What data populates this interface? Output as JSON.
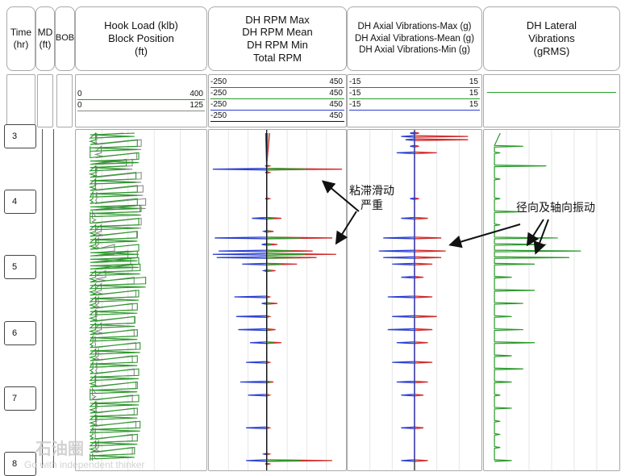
{
  "headers": {
    "time": [
      "Time",
      "(hr)"
    ],
    "md": [
      "MD",
      "(ft)"
    ],
    "bob": "BOB",
    "hook": [
      "Hook Load (klb)",
      "Block Position",
      "(ft)"
    ],
    "rpm": [
      "DH RPM Max",
      "DH RPM Mean",
      "DH RPM Min",
      "Total RPM"
    ],
    "axial": [
      "DH Axial Vibrations-Max (g)",
      "DH Axial Vibrations-Mean (g)",
      "DH Axial Vibrations-Min (g)"
    ],
    "lateral": [
      "DH Lateral",
      "Vibrations",
      "(gRMS)"
    ]
  },
  "scales": {
    "hook": [
      {
        "min": "0",
        "max": "400",
        "color": "#2a9a2a"
      },
      {
        "min": "0",
        "max": "125",
        "color": "#888888"
      }
    ],
    "rpm": [
      {
        "min": "-250",
        "max": "450",
        "color": "#d12b2b"
      },
      {
        "min": "-250",
        "max": "450",
        "color": "#2a9a2a"
      },
      {
        "min": "-250",
        "max": "450",
        "color": "#2b3fd1"
      },
      {
        "min": "-250",
        "max": "450",
        "color": "#111111"
      }
    ],
    "axial": [
      {
        "min": "-15",
        "max": "15",
        "color": "#d12b2b"
      },
      {
        "min": "-15",
        "max": "15",
        "color": "#2a9a2a"
      },
      {
        "min": "-15",
        "max": "15",
        "color": "#2b3fd1"
      }
    ],
    "lateral": [
      {
        "color": "#2a9a2a"
      }
    ]
  },
  "time_ticks": [
    "3",
    "4",
    "5",
    "6",
    "7",
    "8"
  ],
  "annotations": {
    "stick_slip": [
      "粘滞滑动",
      "严重"
    ],
    "vibration": "径向及轴向振动"
  },
  "watermark": {
    "cn": "石油圈",
    "en": "Go with independent thinker"
  },
  "colors": {
    "red": "#d12b2b",
    "green": "#2a9a2a",
    "blue": "#2b3fd1",
    "black": "#111111",
    "gray": "#8a8a8a"
  },
  "chart_data": [
    {
      "type": "line",
      "track": "hook",
      "x_unit": "hr",
      "xlim": [
        2.95,
        8.1
      ],
      "series": [
        {
          "name": "Hook Load (klb)",
          "x": [
            3.0,
            3.1,
            3.2,
            3.3,
            3.4,
            3.5,
            3.6,
            3.7,
            3.8,
            3.9,
            4.0,
            4.1,
            4.2,
            4.3,
            4.4,
            4.5,
            4.6,
            4.7,
            4.8,
            4.9,
            5.0,
            5.1,
            5.2,
            5.3,
            5.4,
            5.5,
            5.6,
            5.7,
            5.8,
            5.9,
            6.0,
            6.1,
            6.2,
            6.3,
            6.4,
            6.5,
            6.6,
            6.7,
            6.8,
            6.9,
            7.0,
            7.1,
            7.2,
            7.3,
            7.4,
            7.5,
            7.6,
            7.7,
            7.8,
            7.9,
            8.0
          ],
          "values": [
            200,
            60,
            210,
            40,
            215,
            170,
            60,
            205,
            60,
            210,
            50,
            210,
            220,
            40,
            215,
            60,
            210,
            60,
            215,
            210,
            215,
            220,
            60,
            240,
            60,
            215,
            60,
            210,
            60,
            200,
            60,
            210,
            50,
            220,
            60,
            210,
            50,
            215,
            60,
            210,
            40,
            215,
            60,
            210,
            60,
            220,
            50,
            210,
            60,
            200,
            40
          ]
        },
        {
          "name": "Block Position (ft)",
          "x": [
            3.0,
            3.1,
            3.2,
            3.3,
            3.4,
            3.5,
            3.6,
            3.7,
            3.8,
            3.9,
            4.0,
            4.1,
            4.2,
            4.3,
            4.4,
            4.5,
            4.6,
            4.7,
            4.8,
            4.9,
            5.0,
            5.1,
            5.2,
            5.3,
            5.4,
            5.5,
            5.6,
            5.7,
            5.8,
            5.9,
            6.0,
            6.1,
            6.2,
            6.3,
            6.4,
            6.5,
            6.6,
            6.7,
            6.8,
            6.9,
            7.0,
            7.1,
            7.2,
            7.3,
            7.4,
            7.5,
            7.6,
            7.7,
            7.8,
            7.9,
            8.0
          ],
          "values": [
            50,
            20,
            70,
            25,
            65,
            60,
            20,
            70,
            18,
            72,
            20,
            75,
            70,
            15,
            70,
            25,
            65,
            22,
            40,
            55,
            58,
            60,
            30,
            62,
            25,
            64,
            22,
            60,
            20,
            63,
            25,
            62,
            18,
            64,
            22,
            60,
            20,
            62,
            18,
            64,
            15,
            60,
            20,
            62,
            20,
            64,
            18,
            60,
            22,
            60,
            15
          ]
        }
      ]
    },
    {
      "type": "line",
      "track": "rpm",
      "x_unit": "hr",
      "xlim": [
        2.95,
        8.1
      ],
      "ylim": [
        -250,
        450
      ],
      "series": [
        {
          "name": "DH RPM Max",
          "x": [
            3.0,
            3.5,
            3.55,
            3.6,
            4.0,
            4.3,
            4.5,
            4.6,
            4.7,
            4.8,
            4.85,
            4.9,
            5.0,
            5.1,
            5.5,
            5.6,
            5.8,
            6.0,
            6.2,
            6.5,
            6.8,
            7.0,
            7.5,
            7.9,
            8.0,
            8.05
          ],
          "values": [
            60,
            60,
            430,
            60,
            60,
            120,
            80,
            380,
            100,
            280,
            400,
            300,
            200,
            90,
            60,
            100,
            60,
            90,
            120,
            60,
            80,
            60,
            60,
            60,
            380,
            60
          ]
        },
        {
          "name": "DH RPM Mean",
          "x": [
            3.0,
            3.5,
            3.55,
            3.6,
            4.0,
            4.3,
            4.5,
            4.6,
            4.7,
            4.8,
            4.85,
            4.9,
            5.0,
            5.1,
            5.5,
            5.6,
            5.8,
            6.0,
            6.2,
            6.5,
            6.8,
            7.0,
            7.5,
            7.9,
            8.0,
            8.05
          ],
          "values": [
            50,
            50,
            250,
            50,
            50,
            80,
            60,
            220,
            70,
            180,
            240,
            200,
            120,
            60,
            50,
            70,
            50,
            60,
            80,
            50,
            60,
            50,
            50,
            50,
            220,
            50
          ]
        },
        {
          "name": "DH RPM Min",
          "x": [
            3.0,
            3.5,
            3.55,
            3.6,
            4.0,
            4.3,
            4.5,
            4.6,
            4.7,
            4.8,
            4.85,
            4.9,
            5.0,
            5.1,
            5.5,
            5.6,
            5.8,
            6.0,
            6.2,
            6.5,
            6.8,
            7.0,
            7.5,
            7.9,
            8.0,
            8.05
          ],
          "values": [
            40,
            40,
            -230,
            40,
            40,
            -30,
            30,
            -220,
            20,
            -200,
            -230,
            -210,
            -80,
            30,
            -120,
            20,
            -110,
            -100,
            -40,
            -60,
            -90,
            -50,
            -60,
            30,
            -60,
            40
          ]
        },
        {
          "name": "Total RPM",
          "x": [
            3.0,
            4.0,
            5.0,
            6.0,
            7.0,
            8.0
          ],
          "values": [
            45,
            45,
            45,
            45,
            45,
            45
          ]
        }
      ]
    },
    {
      "type": "line",
      "track": "axial",
      "x_unit": "hr",
      "xlim": [
        2.95,
        8.1
      ],
      "ylim": [
        -15,
        15
      ],
      "series": [
        {
          "name": "DH Axial Vibrations-Max (g)",
          "x": [
            3.0,
            3.05,
            3.1,
            3.2,
            3.3,
            4.0,
            4.3,
            4.6,
            4.8,
            4.9,
            5.0,
            5.2,
            5.5,
            5.8,
            6.0,
            6.2,
            6.5,
            6.8,
            7.0,
            7.5,
            8.0
          ],
          "values": [
            1,
            12,
            12,
            1,
            5,
            1,
            3,
            6,
            7,
            6,
            4,
            2,
            4,
            5,
            4,
            3,
            4,
            3,
            2,
            2,
            3
          ]
        },
        {
          "name": "DH Axial Vibrations-Mean (g)",
          "x": [
            3.0,
            4.0,
            5.0,
            6.0,
            7.0,
            8.0
          ],
          "values": [
            0,
            0,
            0,
            0,
            0,
            0
          ]
        },
        {
          "name": "DH Axial Vibrations-Min (g)",
          "x": [
            3.0,
            3.05,
            3.1,
            3.2,
            3.3,
            4.0,
            4.3,
            4.6,
            4.8,
            4.9,
            5.0,
            5.2,
            5.5,
            5.8,
            6.0,
            6.2,
            6.5,
            6.8,
            7.0,
            7.5,
            8.0
          ],
          "values": [
            -1,
            -3,
            -2,
            -1,
            -4,
            -1,
            -3,
            -7,
            -8,
            -7,
            -5,
            -3,
            -6,
            -5,
            -6,
            -4,
            -5,
            -4,
            -3,
            -3,
            -3
          ]
        }
      ]
    },
    {
      "type": "line",
      "track": "lateral",
      "x_unit": "hr",
      "xlim": [
        2.95,
        8.1
      ],
      "series": [
        {
          "name": "DH Lateral Vibrations (gRMS)",
          "x": [
            3.0,
            3.2,
            3.3,
            3.5,
            3.7,
            4.0,
            4.2,
            4.4,
            4.6,
            4.7,
            4.8,
            4.9,
            5.0,
            5.2,
            5.4,
            5.6,
            5.8,
            6.0,
            6.2,
            6.4,
            6.6,
            6.8,
            7.0,
            7.2,
            7.4,
            7.6,
            7.8,
            8.0
          ],
          "values": [
            0.1,
            0.3,
            0.1,
            0.5,
            0.1,
            0.1,
            0.3,
            0.1,
            0.6,
            0.5,
            0.8,
            0.7,
            0.4,
            0.2,
            0.4,
            0.3,
            0.2,
            0.3,
            0.4,
            0.2,
            0.3,
            0.2,
            0.1,
            0.2,
            0.1,
            0.1,
            0.1,
            0.2
          ]
        }
      ]
    }
  ]
}
